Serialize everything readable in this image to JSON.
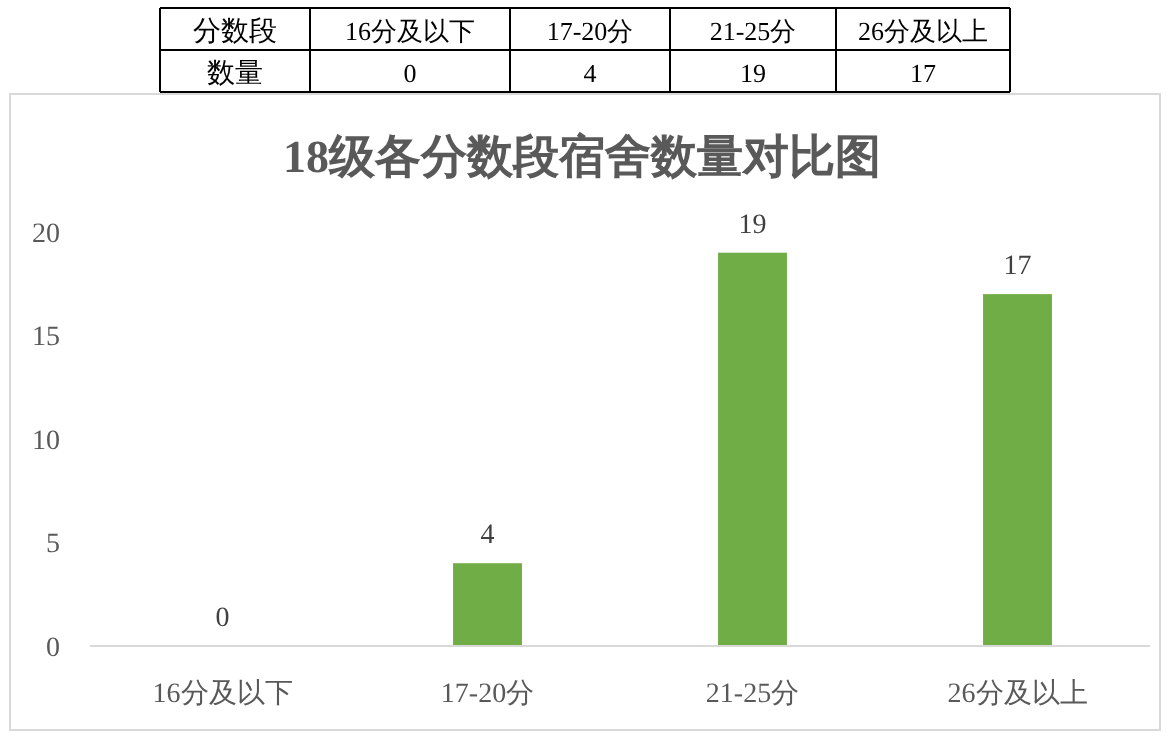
{
  "chart_data": {
    "type": "bar",
    "title": "18级各分数段宿舍数量对比图",
    "categories": [
      "16分及以下",
      "17-20分",
      "21-25分",
      "26分及以上"
    ],
    "values": [
      0,
      4,
      19,
      17
    ],
    "color": "#70ad47",
    "ylim": [
      0,
      20
    ],
    "yticks": [
      0,
      5,
      10,
      15,
      20
    ],
    "grid": false,
    "data_labels": true,
    "annotations": [
      "分数段",
      "数量",
      "0",
      "4",
      "19",
      "17"
    ]
  }
}
